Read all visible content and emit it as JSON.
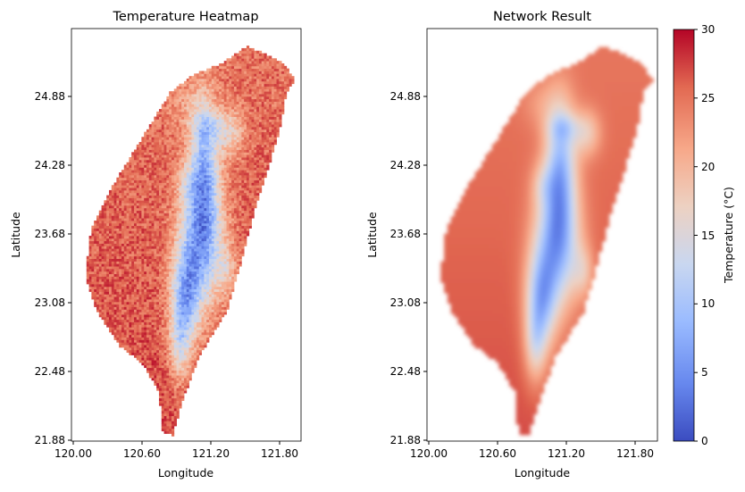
{
  "chart_data": [
    {
      "type": "heatmap",
      "title": "Temperature Heatmap",
      "xlabel": "Longitude",
      "ylabel": "Latitude",
      "xticks": [
        "120.00",
        "120.60",
        "121.20",
        "121.80"
      ],
      "yticks": [
        "24.88",
        "24.28",
        "23.68",
        "23.08",
        "22.48",
        "21.88"
      ],
      "xlim": [
        119.98,
        122.0
      ],
      "ylim": [
        21.87,
        25.45
      ],
      "style": "pixelated"
    },
    {
      "type": "heatmap",
      "title": "Network Result",
      "xlabel": "Longitude",
      "ylabel": "Latitude",
      "xticks": [
        "120.00",
        "120.60",
        "121.20",
        "121.80"
      ],
      "yticks": [
        "24.88",
        "24.28",
        "23.68",
        "23.08",
        "22.48",
        "21.88"
      ],
      "xlim": [
        119.98,
        122.0
      ],
      "ylim": [
        21.87,
        25.45
      ],
      "style": "smooth"
    }
  ],
  "colorbar": {
    "label": "Temperature (°C)",
    "ticks": [
      "0",
      "5",
      "10",
      "15",
      "20",
      "25",
      "30"
    ],
    "vmin": 0,
    "vmax": 30,
    "colormap": [
      "#3b4cc0",
      "#6788ee",
      "#9abbff",
      "#c9d7f0",
      "#edd1c2",
      "#f7a889",
      "#e26952",
      "#b40426"
    ]
  },
  "map": {
    "outline": [
      [
        121.53,
        25.3
      ],
      [
        121.85,
        25.15
      ],
      [
        121.95,
        25.0
      ],
      [
        121.87,
        24.9
      ],
      [
        121.82,
        24.6
      ],
      [
        121.7,
        24.2
      ],
      [
        121.6,
        23.9
      ],
      [
        121.48,
        23.45
      ],
      [
        121.35,
        23.0
      ],
      [
        121.1,
        22.6
      ],
      [
        120.95,
        22.2
      ],
      [
        120.87,
        21.92
      ],
      [
        120.78,
        21.95
      ],
      [
        120.75,
        22.3
      ],
      [
        120.6,
        22.55
      ],
      [
        120.4,
        22.7
      ],
      [
        120.2,
        23.0
      ],
      [
        120.1,
        23.3
      ],
      [
        120.15,
        23.7
      ],
      [
        120.35,
        24.1
      ],
      [
        120.6,
        24.5
      ],
      [
        120.85,
        24.9
      ],
      [
        121.05,
        25.05
      ],
      [
        121.3,
        25.15
      ]
    ],
    "mountains": [
      [
        121.15,
        24.28,
        0.13,
        0.55,
        2.0
      ],
      [
        121.12,
        23.6,
        0.19,
        0.55,
        2.5
      ],
      [
        120.98,
        23.1,
        0.13,
        0.42,
        2.1
      ],
      [
        120.93,
        22.7,
        0.09,
        0.32,
        1.1
      ],
      [
        121.38,
        24.55,
        0.12,
        0.2,
        1.0
      ],
      [
        121.18,
        24.6,
        0.14,
        0.12,
        0.8
      ],
      [
        121.0,
        24.1,
        0.1,
        0.18,
        0.6
      ],
      [
        121.35,
        23.35,
        0.09,
        0.22,
        0.8
      ],
      [
        121.0,
        24.8,
        0.18,
        0.2,
        0.4
      ]
    ]
  }
}
